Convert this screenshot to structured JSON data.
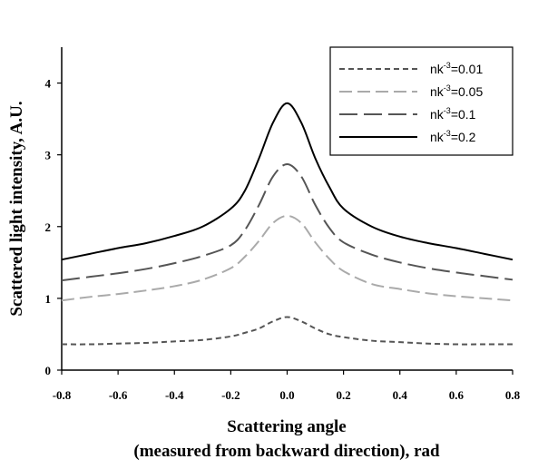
{
  "chart_data": {
    "type": "line",
    "xlabel_line1": "Scattering angle",
    "xlabel_line2": "(measured from backward direction), rad",
    "ylabel": "Scattered light intensity, A.U.",
    "xlim": [
      -0.8,
      0.8
    ],
    "ylim": [
      0,
      4.5
    ],
    "xticks": [
      -0.8,
      -0.6,
      -0.4,
      -0.2,
      0.0,
      0.2,
      0.4,
      0.6,
      0.8
    ],
    "xtick_labels": [
      "-0.8",
      "-0.6",
      "-0.4",
      "-0.2",
      "0.0",
      "0.2",
      "0.4",
      "0.6",
      "0.8"
    ],
    "yticks": [
      0,
      1,
      2,
      3,
      4
    ],
    "ytick_labels": [
      "0",
      "1",
      "2",
      "3",
      "4"
    ],
    "grid": false,
    "legend_position": "top-right",
    "x": [
      -0.8,
      -0.7,
      -0.6,
      -0.5,
      -0.4,
      -0.3,
      -0.2,
      -0.15,
      -0.1,
      -0.05,
      0.0,
      0.05,
      0.1,
      0.15,
      0.2,
      0.3,
      0.4,
      0.5,
      0.6,
      0.7,
      0.8
    ],
    "series": [
      {
        "legend_base": "nk",
        "legend_exp": "-3",
        "legend_value": "=0.01",
        "color": "#555555",
        "dash": "6,4",
        "width": 2,
        "values": [
          0.36,
          0.36,
          0.37,
          0.38,
          0.4,
          0.42,
          0.47,
          0.52,
          0.58,
          0.68,
          0.74,
          0.68,
          0.58,
          0.5,
          0.46,
          0.41,
          0.39,
          0.37,
          0.36,
          0.36,
          0.36
        ]
      },
      {
        "legend_base": "nk",
        "legend_exp": "-3",
        "legend_value": "=0.05",
        "color": "#aaaaaa",
        "dash": "14,6",
        "width": 2,
        "values": [
          0.97,
          1.02,
          1.06,
          1.11,
          1.17,
          1.26,
          1.42,
          1.58,
          1.8,
          2.05,
          2.15,
          2.05,
          1.78,
          1.55,
          1.38,
          1.2,
          1.13,
          1.07,
          1.03,
          1.0,
          0.97
        ]
      },
      {
        "legend_base": "nk",
        "legend_exp": "-3",
        "legend_value": "=0.1",
        "color": "#555555",
        "dash": "20,7",
        "width": 2,
        "values": [
          1.25,
          1.3,
          1.35,
          1.41,
          1.49,
          1.59,
          1.74,
          1.95,
          2.3,
          2.7,
          2.87,
          2.7,
          2.3,
          1.98,
          1.78,
          1.61,
          1.5,
          1.42,
          1.36,
          1.31,
          1.26
        ]
      },
      {
        "legend_base": "nk",
        "legend_exp": "-3",
        "legend_value": "=0.2",
        "color": "#000000",
        "dash": "",
        "width": 2,
        "values": [
          1.54,
          1.62,
          1.7,
          1.77,
          1.87,
          2.0,
          2.25,
          2.5,
          2.95,
          3.45,
          3.72,
          3.45,
          2.95,
          2.55,
          2.25,
          2.0,
          1.86,
          1.77,
          1.7,
          1.62,
          1.54
        ]
      }
    ]
  }
}
